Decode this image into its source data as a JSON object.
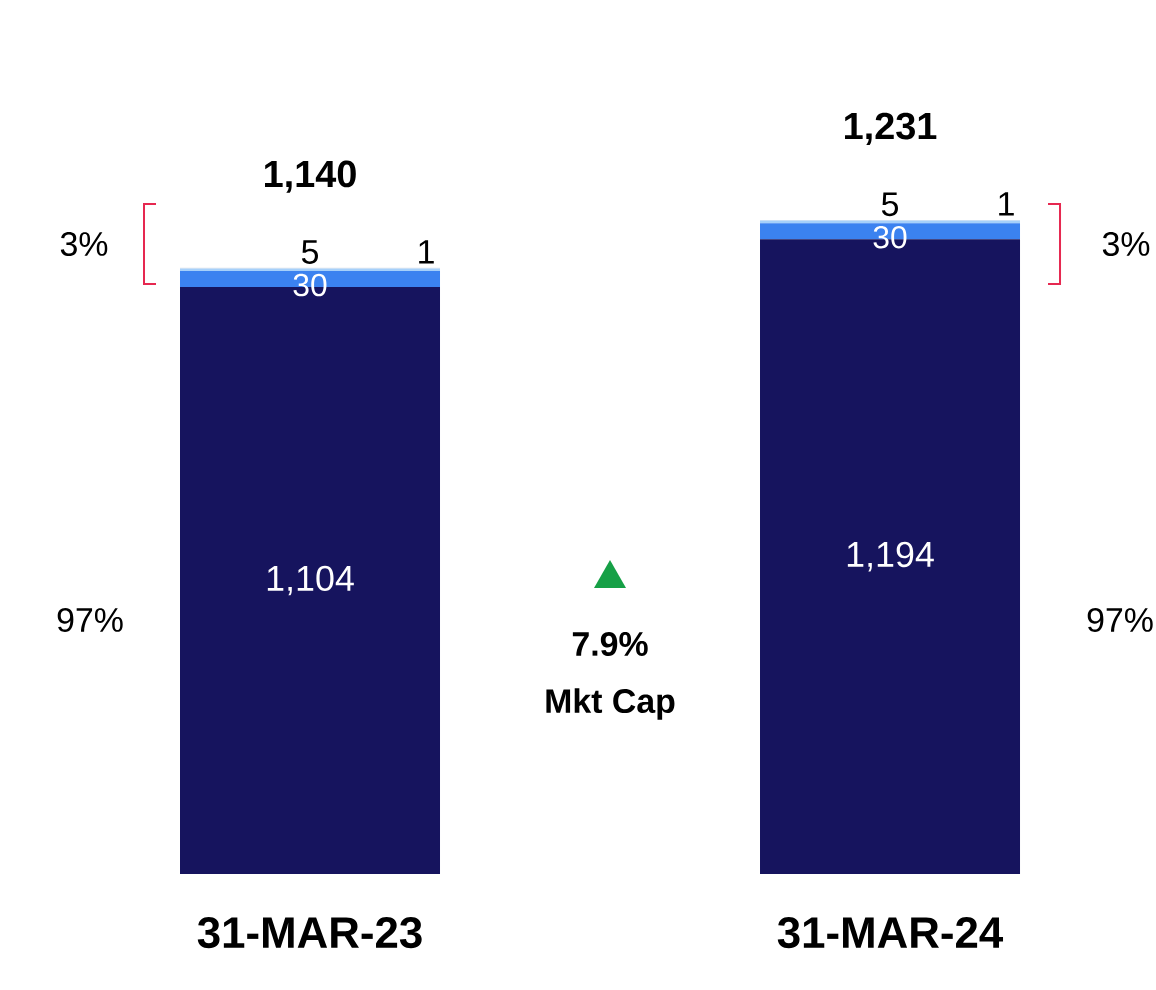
{
  "chart_data": {
    "type": "bar",
    "stacked": true,
    "categories": [
      "31-MAR-23",
      "31-MAR-24"
    ],
    "series": [
      {
        "color": "#16145e",
        "values": [
          1104,
          1194
        ],
        "value_labels": [
          "1,104",
          "1,194"
        ]
      },
      {
        "color": "#3b82f0",
        "values": [
          30,
          30
        ],
        "value_labels": [
          "30",
          "30"
        ]
      },
      {
        "color": "#a6d0fa",
        "values": [
          5,
          5
        ],
        "value_labels": [
          "5",
          "5"
        ]
      },
      {
        "color": "#d9dfe8",
        "values": [
          1,
          1
        ],
        "value_labels": [
          "1",
          "1"
        ]
      }
    ],
    "totals": [
      "1,140",
      "1,231"
    ],
    "tick_labels": "x",
    "annotations": [
      "3%",
      "97%",
      "3%",
      "97%",
      "7.9%",
      "Mkt Cap"
    ]
  }
}
